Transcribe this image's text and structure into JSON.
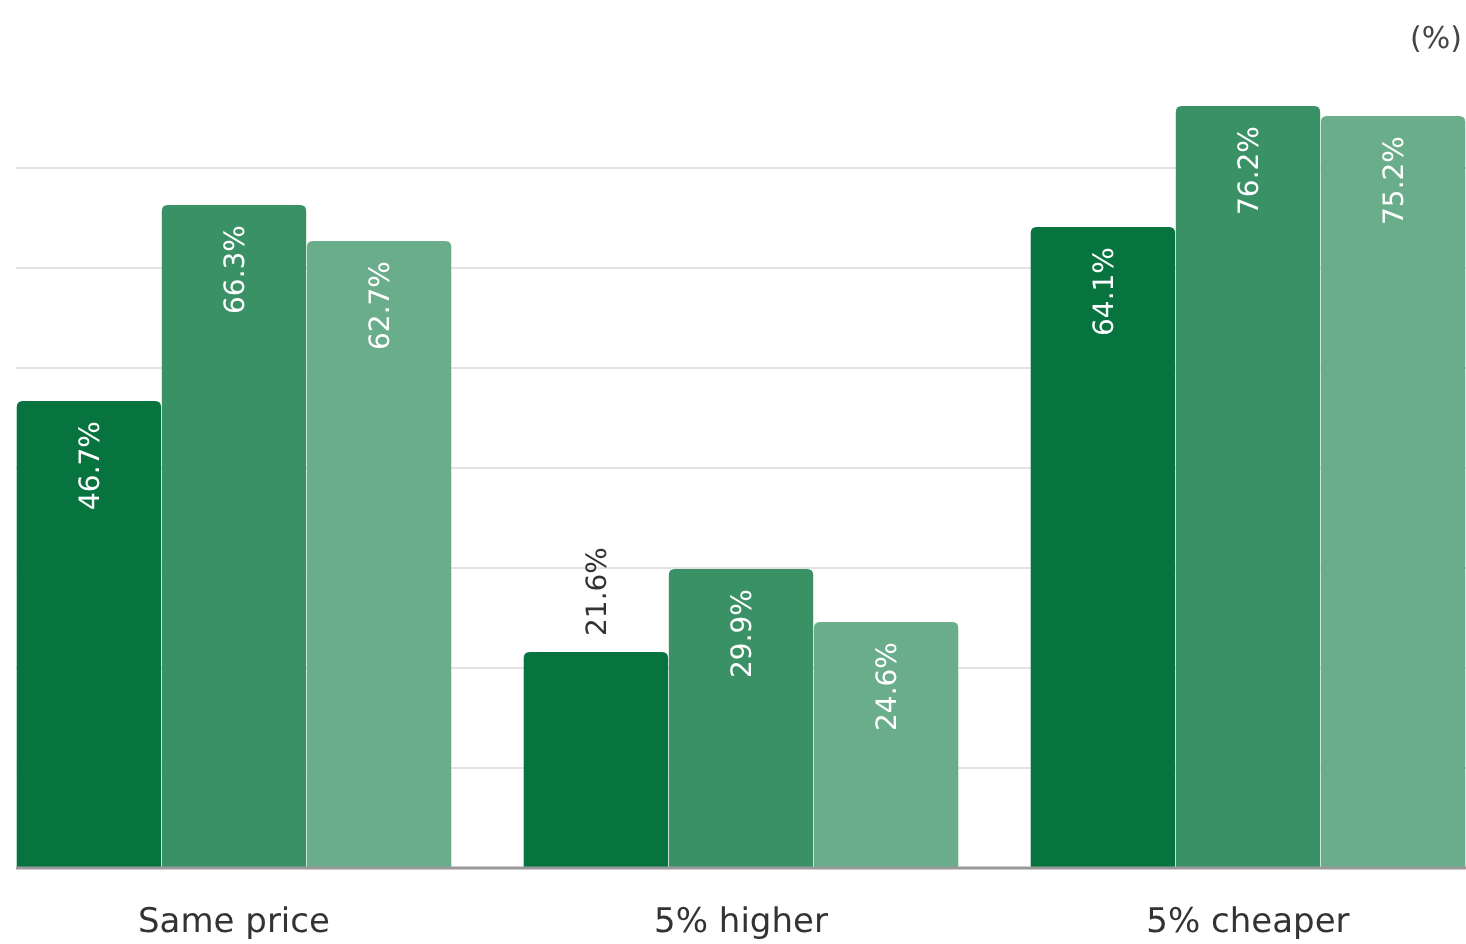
{
  "chart_data": {
    "type": "bar",
    "ylabel": "(%)",
    "categories": [
      "Same price",
      "5% higher",
      "5% cheaper"
    ],
    "series": [
      {
        "color": "#077440",
        "values": [
          46.7,
          21.6,
          64.1
        ],
        "value_labels": [
          "46.7%",
          "21.6%",
          "64.1%"
        ]
      },
      {
        "color": "#3a9166",
        "values": [
          66.3,
          29.9,
          76.2
        ],
        "value_labels": [
          "66.3%",
          "29.9%",
          "76.2%"
        ]
      },
      {
        "color": "#6aad8a",
        "values": [
          62.7,
          24.6,
          75.2
        ],
        "value_labels": [
          "62.7%",
          "24.6%",
          "75.2%"
        ]
      }
    ],
    "grid": "y",
    "tick_labels": "x"
  }
}
